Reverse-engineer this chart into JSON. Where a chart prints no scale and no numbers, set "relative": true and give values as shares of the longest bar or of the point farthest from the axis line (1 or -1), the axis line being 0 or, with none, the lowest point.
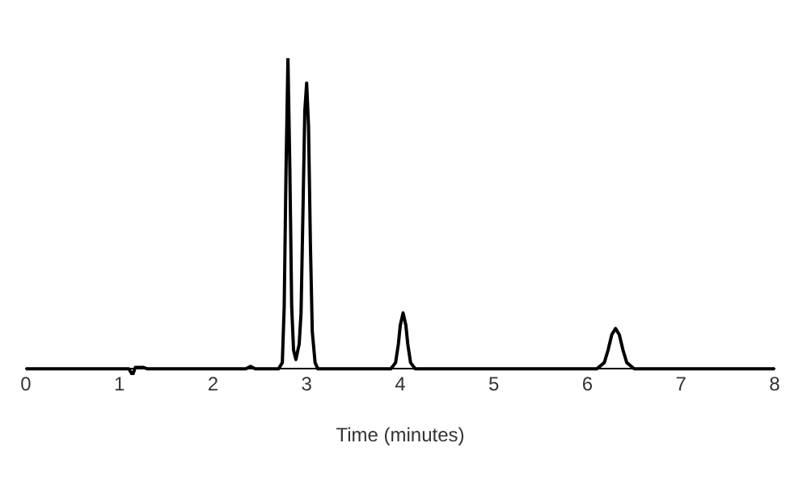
{
  "chart_data": {
    "type": "line",
    "relative": true,
    "xlabel": "Time (minutes)",
    "xlim": [
      0,
      8
    ],
    "xticks": [
      0,
      1,
      2,
      3,
      4,
      5,
      6,
      7,
      8
    ],
    "grid": false,
    "legend": false,
    "marker": "none",
    "line_style": "solid",
    "series": [
      {
        "color": "#000000",
        "x": [
          0,
          1.1,
          1.14,
          1.17,
          1.25,
          1.3,
          2.35,
          2.4,
          2.45,
          2.7,
          2.74,
          2.76,
          2.78,
          2.8,
          2.82,
          2.84,
          2.86,
          2.885,
          2.92,
          2.94,
          2.96,
          2.98,
          3.0,
          3.02,
          3.04,
          3.06,
          3.09,
          3.12,
          3.9,
          3.95,
          3.98,
          4.0,
          4.03,
          4.06,
          4.08,
          4.11,
          4.16,
          6.1,
          6.18,
          6.22,
          6.26,
          6.3,
          6.34,
          6.38,
          6.42,
          6.5,
          8
        ],
        "values": [
          0,
          0,
          -0.02,
          0.005,
          0.005,
          0,
          0,
          0.008,
          0,
          0,
          0.02,
          0.2,
          0.65,
          1,
          0.65,
          0.2,
          0.06,
          0.03,
          0.08,
          0.18,
          0.5,
          0.83,
          0.92,
          0.78,
          0.4,
          0.12,
          0.02,
          0,
          0,
          0.02,
          0.08,
          0.14,
          0.18,
          0.14,
          0.08,
          0.02,
          0,
          0,
          0.02,
          0.06,
          0.11,
          0.13,
          0.11,
          0.06,
          0.02,
          0,
          0
        ]
      }
    ]
  }
}
